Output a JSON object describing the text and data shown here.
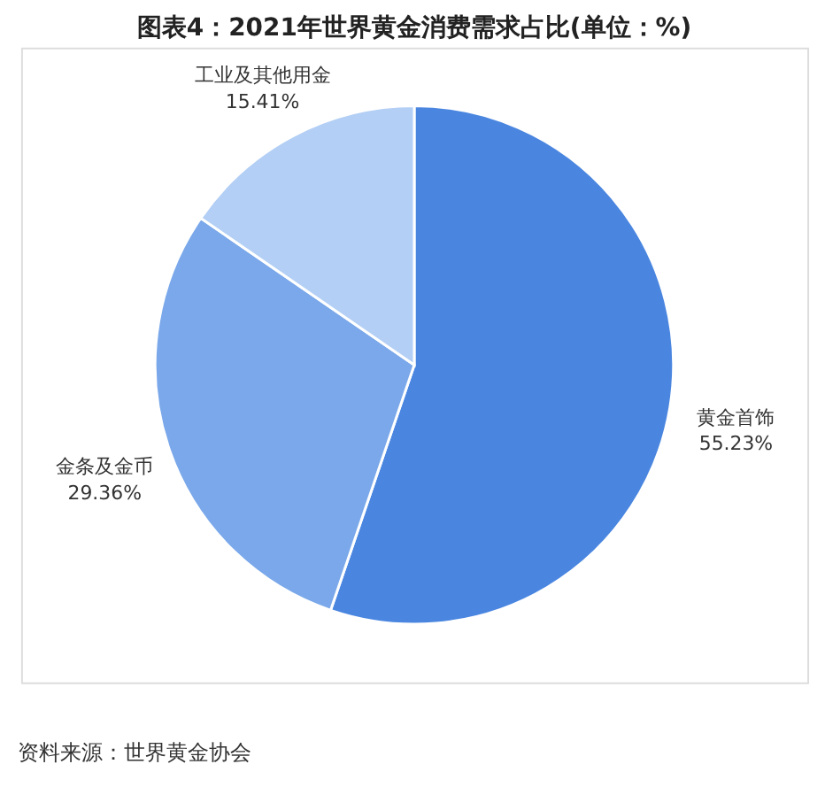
{
  "chart_data": {
    "type": "pie",
    "title": "图表4：2021年世界黄金消费需求占比(单位：%)",
    "categories": [
      "黄金首饰",
      "金条及金币",
      "工业及其他用金"
    ],
    "values": [
      55.23,
      29.36,
      15.41
    ],
    "value_labels": [
      "55.23%",
      "29.36%",
      "15.41%"
    ],
    "colors": [
      "#4a86e0",
      "#7aa8ea",
      "#b3cff5"
    ],
    "legend": false,
    "annotations": [
      "资料来源：世界黄金协会"
    ]
  }
}
